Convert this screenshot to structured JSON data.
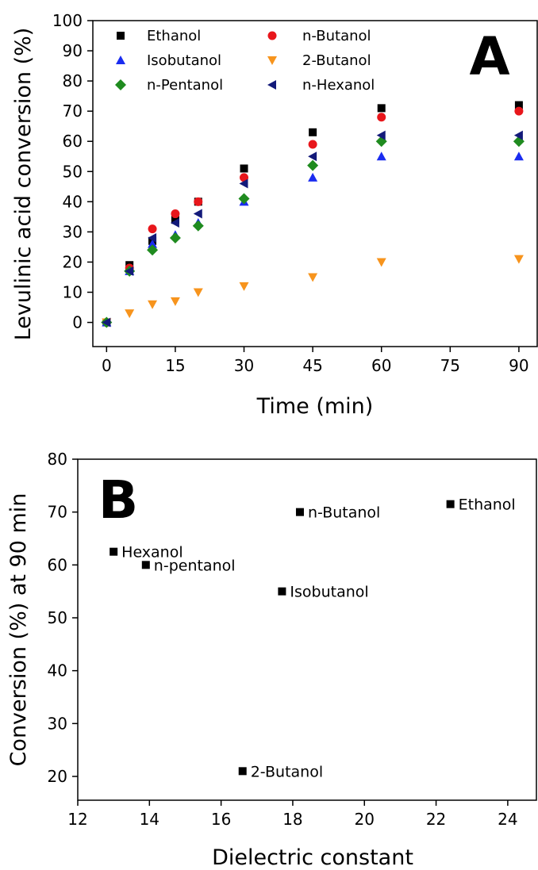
{
  "chart_data": [
    {
      "type": "scatter",
      "panel_label": "A",
      "xlabel": "Time (min)",
      "ylabel": "Levulinic acid conversion (%)",
      "xlim": [
        -3,
        94
      ],
      "ylim": [
        -8,
        100
      ],
      "x_ticks": [
        0,
        15,
        30,
        45,
        60,
        75,
        90
      ],
      "y_ticks": [
        0,
        10,
        20,
        30,
        40,
        50,
        60,
        70,
        80,
        90,
        100
      ],
      "legend_position": "top-left",
      "series": [
        {
          "name": "Ethanol",
          "marker": "square",
          "color": "#000000",
          "x": [
            0,
            5,
            10,
            15,
            20,
            30,
            45,
            60,
            90
          ],
          "y": [
            0,
            19,
            27,
            34,
            40,
            51,
            63,
            71,
            72
          ]
        },
        {
          "name": "n-Butanol",
          "marker": "circle",
          "color": "#e8161b",
          "x": [
            0,
            5,
            10,
            15,
            20,
            30,
            45,
            60,
            90
          ],
          "y": [
            0,
            18,
            31,
            36,
            40,
            48,
            59,
            68,
            70
          ]
        },
        {
          "name": "Isobutanol",
          "marker": "triangle-up",
          "color": "#1a2cf0",
          "x": [
            0,
            5,
            10,
            15,
            20,
            30,
            45,
            60,
            90
          ],
          "y": [
            0,
            17,
            26,
            29,
            33,
            40,
            48,
            55,
            55
          ]
        },
        {
          "name": "2-Butanol",
          "marker": "triangle-down",
          "color": "#f7941d",
          "x": [
            0,
            5,
            10,
            15,
            20,
            30,
            45,
            60,
            90
          ],
          "y": [
            0,
            3,
            6,
            7,
            10,
            12,
            15,
            20,
            21
          ]
        },
        {
          "name": "n-Pentanol",
          "marker": "diamond",
          "color": "#1f8b1f",
          "x": [
            0,
            5,
            10,
            15,
            20,
            30,
            45,
            60,
            90
          ],
          "y": [
            0,
            17,
            24,
            28,
            32,
            41,
            52,
            60,
            60
          ]
        },
        {
          "name": "n-Hexanol",
          "marker": "triangle-left",
          "color": "#131a7a",
          "x": [
            0,
            5,
            10,
            15,
            20,
            30,
            45,
            60,
            90
          ],
          "y": [
            0,
            17,
            28,
            33,
            36,
            46,
            55,
            62,
            62
          ]
        }
      ]
    },
    {
      "type": "scatter",
      "panel_label": "B",
      "xlabel": "Dielectric constant",
      "ylabel": "Conversion (%) at 90 min",
      "xlim": [
        12,
        24.8
      ],
      "ylim": [
        15.5,
        80
      ],
      "x_ticks": [
        12,
        14,
        16,
        18,
        20,
        22,
        24
      ],
      "y_ticks": [
        20,
        30,
        40,
        50,
        60,
        70,
        80
      ],
      "points": [
        {
          "label": "Ethanol",
          "x": 22.4,
          "y": 71.5
        },
        {
          "label": "n-Butanol",
          "x": 18.2,
          "y": 70
        },
        {
          "label": "Isobutanol",
          "x": 17.7,
          "y": 55
        },
        {
          "label": "Hexanol",
          "x": 13.0,
          "y": 62.5
        },
        {
          "label": "n-pentanol",
          "x": 13.9,
          "y": 60
        },
        {
          "label": "2-Butanol",
          "x": 16.6,
          "y": 21
        }
      ]
    }
  ]
}
